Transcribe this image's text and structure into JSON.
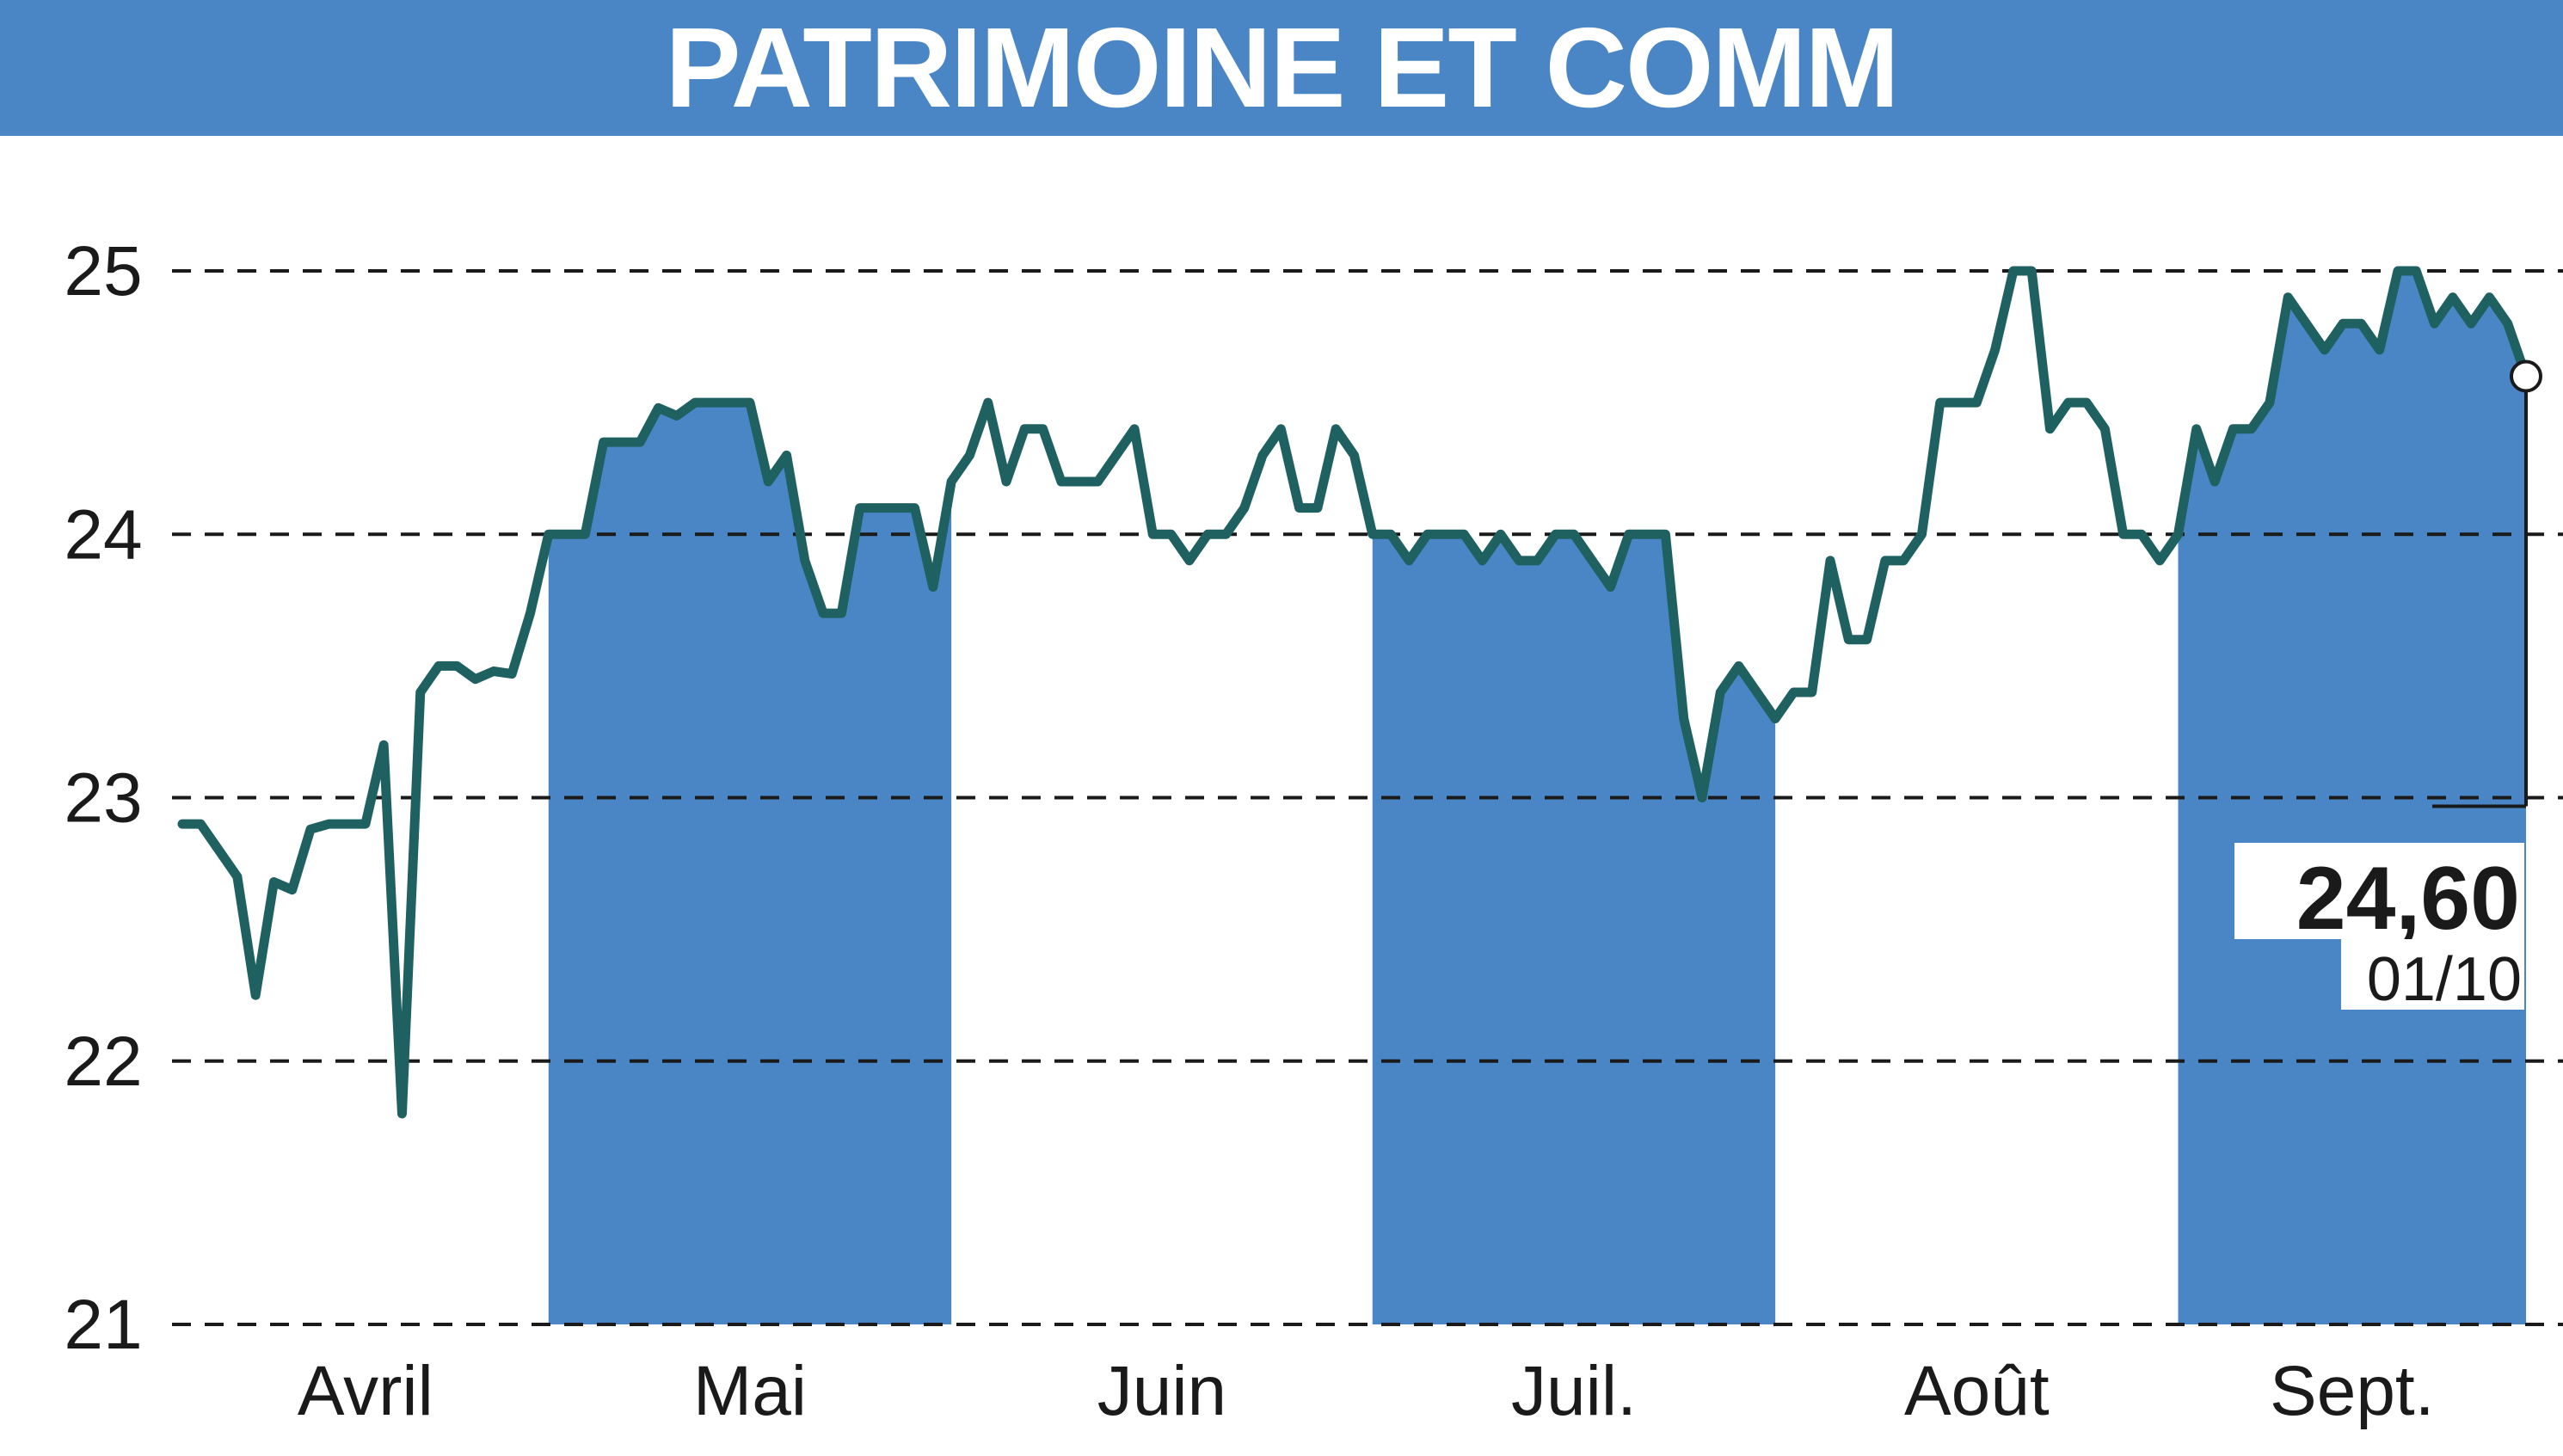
{
  "chart_data": {
    "type": "area",
    "title": "PATRIMOINE ET COMM",
    "y_ticks": [
      "21",
      "22",
      "23",
      "24",
      "25"
    ],
    "ylim": [
      21,
      25
    ],
    "months": [
      "Avril",
      "Mai",
      "Juin",
      "Juil.",
      "Août",
      "Sept."
    ],
    "grid": "horizontal dashed",
    "last_value": {
      "value": "24,60",
      "date": "01/10"
    },
    "colors": {
      "fill": "#4a86c5",
      "line": "#1f6160",
      "title_bg": "#4a86c5",
      "title_text": "#ffffff"
    },
    "series": [
      {
        "values": [
          22.9,
          22.9,
          22.8,
          22.7,
          22.25,
          22.68,
          22.65,
          22.88,
          22.9,
          22.9,
          22.9,
          23.2,
          21.8,
          23.4,
          23.5,
          23.5,
          23.45,
          23.48,
          23.47,
          23.7,
          24.0,
          24.0,
          24.0,
          24.35,
          24.35,
          24.35,
          24.48,
          24.45,
          24.5,
          24.5,
          24.5,
          24.5,
          24.2,
          24.3,
          23.9,
          23.7,
          23.7,
          24.1,
          24.1,
          24.1,
          24.1,
          23.8,
          24.2,
          24.3,
          24.5,
          24.2,
          24.4,
          24.4,
          24.2,
          24.2,
          24.2,
          24.3,
          24.4,
          24.0,
          24.0,
          23.9,
          24.0,
          24.0,
          24.1,
          24.3,
          24.4,
          24.1,
          24.1,
          24.4,
          24.3,
          24.0,
          24.0,
          23.9,
          24.0,
          24.0,
          24.0,
          23.9,
          24.0,
          23.9,
          23.9,
          24.0,
          24.0,
          23.9,
          23.8,
          24.0,
          24.0,
          24.0,
          23.3,
          23.0,
          23.4,
          23.5,
          23.4,
          23.3,
          23.4,
          23.4,
          23.9,
          23.6,
          23.6,
          23.9,
          23.9,
          24.0,
          24.5,
          24.5,
          24.5,
          24.7,
          25.0,
          25.0,
          24.4,
          24.5,
          24.5,
          24.4,
          24.0,
          24.0,
          23.9,
          24.0,
          24.4,
          24.2,
          24.4,
          24.4,
          24.5,
          24.9,
          24.8,
          24.7,
          24.8,
          24.8,
          24.7,
          25.0,
          25.0,
          24.8,
          24.9,
          24.8,
          24.9,
          24.8,
          24.6
        ]
      }
    ]
  }
}
